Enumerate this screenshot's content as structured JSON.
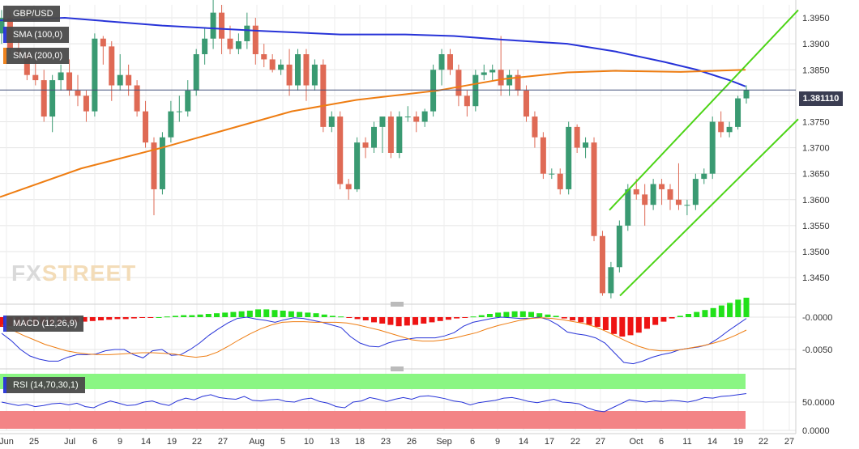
{
  "chart_data": [
    {
      "type": "candlestick",
      "instrument": "GBP/USD",
      "ylim": [
        1.3405,
        1.3975
      ],
      "y_ticks": [
        "1.3950",
        "1.3900",
        "1.3850",
        "1.3800",
        "1.3750",
        "1.3700",
        "1.3650",
        "1.3600",
        "1.3550",
        "1.3500",
        "1.3450"
      ],
      "x_ticks": [
        "Jun",
        "25",
        "Jul",
        "6",
        "9",
        "14",
        "19",
        "22",
        "27",
        "Aug",
        "5",
        "10",
        "13",
        "18",
        "23",
        "26",
        "Sep",
        "6",
        "9",
        "14",
        "17",
        "22",
        "27",
        "Oct",
        "6",
        "11",
        "14",
        "19",
        "22",
        "27"
      ],
      "last_price_label": "1.381110",
      "last_price": 1.3811,
      "colors": {
        "up": "#3a9a72",
        "down": "#df6a55",
        "sma100": "#2733d8",
        "sma200": "#ee7d12",
        "channel": "#4cd416",
        "last_price_line": "#44507a"
      },
      "candles": [
        [
          1.392,
          1.3965,
          1.39,
          1.395
        ],
        [
          1.395,
          1.396,
          1.388,
          1.389
        ],
        [
          1.389,
          1.392,
          1.387,
          1.388
        ],
        [
          1.388,
          1.389,
          1.383,
          1.384
        ],
        [
          1.384,
          1.387,
          1.382,
          1.383
        ],
        [
          1.383,
          1.385,
          1.375,
          1.376
        ],
        [
          1.376,
          1.384,
          1.373,
          1.383
        ],
        [
          1.383,
          1.386,
          1.381,
          1.3845
        ],
        [
          1.3845,
          1.387,
          1.38,
          1.381
        ],
        [
          1.381,
          1.384,
          1.378,
          1.38
        ],
        [
          1.38,
          1.381,
          1.375,
          1.377
        ],
        [
          1.377,
          1.392,
          1.376,
          1.391
        ],
        [
          1.391,
          1.3915,
          1.386,
          1.3895
        ],
        [
          1.3895,
          1.3905,
          1.379,
          1.382
        ],
        [
          1.382,
          1.388,
          1.381,
          1.384
        ],
        [
          1.384,
          1.386,
          1.38,
          1.382
        ],
        [
          1.382,
          1.383,
          1.376,
          1.377
        ],
        [
          1.377,
          1.379,
          1.37,
          1.371
        ],
        [
          1.371,
          1.372,
          1.357,
          1.362
        ],
        [
          1.362,
          1.373,
          1.361,
          1.372
        ],
        [
          1.372,
          1.379,
          1.371,
          1.377
        ],
        [
          1.377,
          1.38,
          1.375,
          1.377
        ],
        [
          1.377,
          1.383,
          1.376,
          1.381
        ],
        [
          1.381,
          1.389,
          1.38,
          1.388
        ],
        [
          1.388,
          1.393,
          1.386,
          1.391
        ],
        [
          1.391,
          1.3985,
          1.389,
          1.396
        ],
        [
          1.396,
          1.3975,
          1.388,
          1.391
        ],
        [
          1.391,
          1.3935,
          1.388,
          1.389
        ],
        [
          1.389,
          1.392,
          1.388,
          1.3905
        ],
        [
          1.3905,
          1.396,
          1.389,
          1.3935
        ],
        [
          1.3935,
          1.395,
          1.386,
          1.388
        ],
        [
          1.388,
          1.39,
          1.3855,
          1.387
        ],
        [
          1.387,
          1.388,
          1.3845,
          1.385
        ],
        [
          1.385,
          1.387,
          1.384,
          1.386
        ],
        [
          1.386,
          1.389,
          1.38,
          1.382
        ],
        [
          1.382,
          1.389,
          1.381,
          1.388
        ],
        [
          1.388,
          1.389,
          1.379,
          1.382
        ],
        [
          1.382,
          1.387,
          1.381,
          1.386
        ],
        [
          1.386,
          1.387,
          1.373,
          1.374
        ],
        [
          1.374,
          1.377,
          1.373,
          1.376
        ],
        [
          1.376,
          1.377,
          1.362,
          1.363
        ],
        [
          1.363,
          1.364,
          1.36,
          1.362
        ],
        [
          1.362,
          1.372,
          1.3615,
          1.371
        ],
        [
          1.371,
          1.372,
          1.368,
          1.37
        ],
        [
          1.37,
          1.375,
          1.369,
          1.374
        ],
        [
          1.374,
          1.376,
          1.369,
          1.376
        ],
        [
          1.376,
          1.377,
          1.368,
          1.369
        ],
        [
          1.369,
          1.377,
          1.368,
          1.376
        ],
        [
          1.376,
          1.378,
          1.375,
          1.376
        ],
        [
          1.376,
          1.377,
          1.373,
          1.375
        ],
        [
          1.375,
          1.3775,
          1.374,
          1.377
        ],
        [
          1.377,
          1.386,
          1.376,
          1.385
        ],
        [
          1.385,
          1.389,
          1.382,
          1.388
        ],
        [
          1.388,
          1.389,
          1.384,
          1.385
        ],
        [
          1.385,
          1.386,
          1.378,
          1.38
        ],
        [
          1.38,
          1.381,
          1.376,
          1.378
        ],
        [
          1.378,
          1.385,
          1.377,
          1.384
        ],
        [
          1.384,
          1.386,
          1.383,
          1.3845
        ],
        [
          1.3845,
          1.386,
          1.383,
          1.385
        ],
        [
          1.385,
          1.3915,
          1.38,
          1.382
        ],
        [
          1.382,
          1.385,
          1.38,
          1.384
        ],
        [
          1.384,
          1.385,
          1.38,
          1.381
        ],
        [
          1.381,
          1.382,
          1.375,
          1.376
        ],
        [
          1.376,
          1.377,
          1.37,
          1.372
        ],
        [
          1.372,
          1.373,
          1.364,
          1.365
        ],
        [
          1.365,
          1.366,
          1.364,
          1.365
        ],
        [
          1.365,
          1.366,
          1.361,
          1.362
        ],
        [
          1.362,
          1.375,
          1.361,
          1.374
        ],
        [
          1.374,
          1.3745,
          1.369,
          1.37
        ],
        [
          1.37,
          1.372,
          1.368,
          1.371
        ],
        [
          1.371,
          1.372,
          1.352,
          1.353
        ],
        [
          1.353,
          1.354,
          1.3415,
          1.342
        ],
        [
          1.342,
          1.348,
          1.341,
          1.347
        ],
        [
          1.347,
          1.356,
          1.346,
          1.355
        ],
        [
          1.355,
          1.363,
          1.354,
          1.362
        ],
        [
          1.362,
          1.364,
          1.36,
          1.361
        ],
        [
          1.361,
          1.363,
          1.355,
          1.359
        ],
        [
          1.359,
          1.364,
          1.358,
          1.363
        ],
        [
          1.363,
          1.364,
          1.359,
          1.362
        ],
        [
          1.362,
          1.363,
          1.358,
          1.36
        ],
        [
          1.36,
          1.367,
          1.358,
          1.359
        ],
        [
          1.359,
          1.36,
          1.357,
          1.359
        ],
        [
          1.359,
          1.365,
          1.358,
          1.364
        ],
        [
          1.364,
          1.366,
          1.363,
          1.365
        ],
        [
          1.365,
          1.376,
          1.364,
          1.375
        ],
        [
          1.375,
          1.377,
          1.372,
          1.373
        ],
        [
          1.373,
          1.375,
          1.372,
          1.374
        ],
        [
          1.374,
          1.38,
          1.3735,
          1.3795
        ],
        [
          1.3795,
          1.382,
          1.3785,
          1.3811
        ]
      ],
      "sma100": [
        [
          0,
          1.3945
        ],
        [
          80,
          1.395
        ],
        [
          200,
          1.3935
        ],
        [
          320,
          1.3925
        ],
        [
          420,
          1.3918
        ],
        [
          500,
          1.3918
        ],
        [
          560,
          1.3915
        ],
        [
          620,
          1.3908
        ],
        [
          700,
          1.39
        ],
        [
          760,
          1.3885
        ],
        [
          820,
          1.3865
        ],
        [
          860,
          1.385
        ],
        [
          900,
          1.383
        ],
        [
          920,
          1.3818
        ]
      ],
      "sma200": [
        [
          0,
          1.3605
        ],
        [
          100,
          1.366
        ],
        [
          200,
          1.37
        ],
        [
          280,
          1.3735
        ],
        [
          360,
          1.377
        ],
        [
          440,
          1.3792
        ],
        [
          540,
          1.381
        ],
        [
          620,
          1.3832
        ],
        [
          700,
          1.3845
        ],
        [
          760,
          1.3848
        ],
        [
          840,
          1.3846
        ],
        [
          920,
          1.385
        ]
      ],
      "channel": {
        "upper": [
          [
            752,
            1.358
          ],
          [
            985,
            1.3965
          ]
        ],
        "lower": [
          [
            765,
            1.3415
          ],
          [
            985,
            1.3755
          ]
        ]
      },
      "legend": [
        {
          "label": "GBP/USD",
          "color": "#4a4a4a"
        },
        {
          "label": "SMA (100,0)",
          "color": "#2733d8"
        },
        {
          "label": "SMA (200,0)",
          "color": "#ee7d12"
        }
      ]
    },
    {
      "type": "bar",
      "indicator": "MACD (12,26,9)",
      "ylim": [
        -0.0075,
        0.0015
      ],
      "y_ticks": [
        "-0.0000",
        "-0.0050"
      ],
      "histogram": [
        -0.0015,
        -0.0014,
        -0.0013,
        -0.0012,
        -0.0011,
        -0.001,
        -0.001,
        -0.0009,
        -0.0008,
        -0.0008,
        -0.0007,
        -0.0006,
        -0.0005,
        -0.0004,
        -0.0003,
        -0.0003,
        -0.0002,
        -0.0001,
        -0.0001,
        0.0,
        0.0001,
        0.0002,
        0.0003,
        0.0003,
        0.0004,
        0.0005,
        0.0006,
        0.0007,
        0.0008,
        0.0009,
        0.001,
        0.0012,
        0.0012,
        0.0011,
        0.001,
        0.0009,
        0.0008,
        0.0007,
        0.0006,
        0.0004,
        0.0002,
        0.0001,
        -0.0001,
        -0.0003,
        -0.0005,
        -0.0008,
        -0.001,
        -0.0012,
        -0.0014,
        -0.0013,
        -0.0012,
        -0.001,
        -0.0008,
        -0.0006,
        -0.0004,
        -0.0002,
        -0.0001,
        0.0001,
        0.0003,
        0.0005,
        0.0007,
        0.0008,
        0.0009,
        0.0009,
        0.0008,
        0.0006,
        0.0004,
        0.0002,
        -0.0002,
        -0.0005,
        -0.0008,
        -0.0012,
        -0.0015,
        -0.002,
        -0.0026,
        -0.003,
        -0.0028,
        -0.0024,
        -0.0018,
        -0.0012,
        -0.0007,
        -0.0002,
        0.0002,
        0.0005,
        0.0008,
        0.0011,
        0.0014,
        0.0018,
        0.0022,
        0.0027,
        0.003
      ],
      "macd_line": [
        -0.0025,
        -0.0036,
        -0.005,
        -0.006,
        -0.0065,
        -0.0068,
        -0.0068,
        -0.0062,
        -0.0058,
        -0.0058,
        -0.0057,
        -0.0052,
        -0.005,
        -0.005,
        -0.0058,
        -0.0063,
        -0.0052,
        -0.005,
        -0.0059,
        -0.0058,
        -0.005,
        -0.004,
        -0.0028,
        -0.0018,
        -0.0009,
        -0.0002,
        0.0,
        -0.0003,
        -0.0005,
        -0.0008,
        -0.0004,
        -0.0001,
        -0.0002,
        -0.0005,
        -0.0008,
        -0.0012,
        -0.0016,
        -0.003,
        -0.004,
        -0.0045,
        -0.0046,
        -0.004,
        -0.0036,
        -0.0034,
        -0.0032,
        -0.0032,
        -0.0032,
        -0.0029,
        -0.0024,
        -0.0014,
        -0.0008,
        -0.0005,
        -0.0002,
        0.0,
        -0.0001,
        -0.0002,
        -0.0002,
        0.0,
        -0.0004,
        -0.0012,
        -0.0023,
        -0.0026,
        -0.0028,
        -0.0032,
        -0.004,
        -0.0055,
        -0.007,
        -0.0072,
        -0.0068,
        -0.0062,
        -0.0058,
        -0.0055,
        -0.005,
        -0.0048,
        -0.0046,
        -0.0042,
        -0.0033,
        -0.0022,
        -0.0012,
        -0.0002
      ],
      "signal_line": [
        -0.0012,
        -0.002,
        -0.0028,
        -0.0035,
        -0.0042,
        -0.0047,
        -0.0052,
        -0.0055,
        -0.0057,
        -0.0058,
        -0.0058,
        -0.0057,
        -0.0056,
        -0.0055,
        -0.0055,
        -0.0056,
        -0.0057,
        -0.006,
        -0.0062,
        -0.006,
        -0.0054,
        -0.0045,
        -0.0035,
        -0.0026,
        -0.0018,
        -0.0012,
        -0.0008,
        -0.0007,
        -0.0007,
        -0.0008,
        -0.0008,
        -0.0008,
        -0.0009,
        -0.0012,
        -0.0016,
        -0.002,
        -0.0025,
        -0.003,
        -0.0035,
        -0.0037,
        -0.0037,
        -0.0035,
        -0.0032,
        -0.0028,
        -0.0024,
        -0.0018,
        -0.0013,
        -0.0009,
        -0.0005,
        -0.0002,
        -0.0001,
        -0.0002,
        -0.0004,
        -0.0007,
        -0.001,
        -0.0015,
        -0.0022,
        -0.003,
        -0.0038,
        -0.0045,
        -0.005,
        -0.0052,
        -0.0052,
        -0.005,
        -0.0047,
        -0.0044,
        -0.004,
        -0.0035,
        -0.0028,
        -0.002
      ],
      "colors": {
        "positive": "#22e11a",
        "negative": "#ee1313",
        "macd": "#2733d8",
        "signal": "#ee7d12"
      }
    },
    {
      "type": "line",
      "indicator": "RSI (14,70,30,1)",
      "ylim": [
        0,
        100
      ],
      "y_ticks": [
        "50.0000",
        "0.0000"
      ],
      "overbought": 70,
      "oversold": 30,
      "values": [
        50,
        47,
        44,
        46,
        42,
        44,
        47,
        48,
        45,
        48,
        42,
        40,
        47,
        52,
        48,
        44,
        45,
        50,
        52,
        47,
        44,
        52,
        57,
        54,
        60,
        63,
        58,
        56,
        55,
        60,
        53,
        52,
        54,
        55,
        51,
        50,
        55,
        57,
        51,
        48,
        42,
        40,
        50,
        52,
        58,
        55,
        51,
        55,
        58,
        55,
        60,
        61,
        59,
        56,
        52,
        50,
        45,
        49,
        51,
        53,
        57,
        58,
        55,
        51,
        49,
        52,
        55,
        50,
        49,
        47,
        40,
        35,
        33,
        40,
        47,
        54,
        52,
        50,
        52,
        51,
        53,
        52,
        50,
        53,
        58,
        57,
        60,
        61,
        63,
        65
      ],
      "colors": {
        "line": "#2733d8",
        "ob_zone": "#84f57c",
        "os_zone": "#f27d7f"
      }
    }
  ],
  "logo": {
    "prefix": "FX",
    "suffix": "STREET"
  }
}
